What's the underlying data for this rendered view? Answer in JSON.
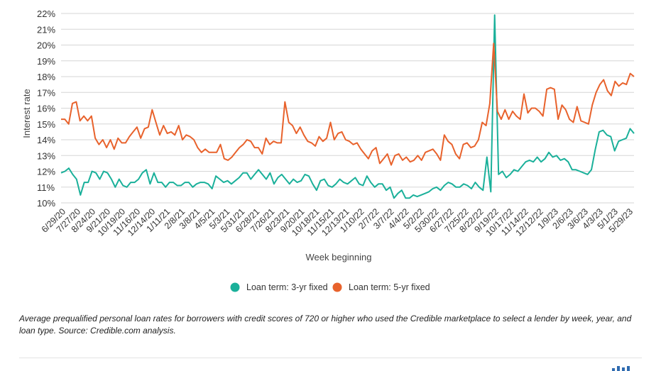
{
  "chart_data": {
    "type": "line",
    "title": "",
    "xlabel": "Week beginning",
    "ylabel": "Interest rate",
    "ylim": [
      10,
      22
    ],
    "y_ticks": [
      "22%",
      "21%",
      "20%",
      "19%",
      "18%",
      "17%",
      "16%",
      "15%",
      "14%",
      "13%",
      "12%",
      "11%",
      "10%"
    ],
    "x_tick_labels": [
      "6/29/20",
      "7/27/20",
      "8/24/20",
      "9/21/20",
      "10/19/20",
      "11/16/20",
      "12/14/20",
      "1/11/21",
      "2/8/21",
      "3/8/21",
      "4/5/21",
      "5/3/21",
      "5/31/21",
      "6/28/21",
      "7/26/21",
      "8/23/21",
      "9/20/21",
      "10/18/21",
      "11/15/21",
      "12/13/21",
      "1/10/22",
      "2/7/22",
      "3/7/22",
      "4/4/22",
      "5/2/22",
      "5/30/22",
      "6/27/22",
      "7/25/22",
      "8/22/22",
      "9/19/22",
      "10/17/22",
      "11/14/22",
      "12/12/22",
      "1/9/23",
      "2/6/23",
      "3/6/23",
      "4/3/23",
      "5/1/23",
      "5/29/23"
    ],
    "grid": "horizontal",
    "legend_position": "bottom",
    "colors": {
      "three_year": "#1ab09a",
      "five_year": "#e8622c"
    },
    "series": [
      {
        "name": "Loan term: 3-yr fixed",
        "values": [
          11.9,
          12.0,
          12.2,
          11.8,
          11.5,
          10.5,
          11.3,
          11.3,
          12.0,
          11.9,
          11.5,
          12.0,
          11.9,
          11.5,
          11.0,
          11.5,
          11.1,
          11.0,
          11.3,
          11.3,
          11.5,
          11.9,
          12.1,
          11.2,
          11.9,
          11.3,
          11.3,
          11.0,
          11.3,
          11.3,
          11.1,
          11.1,
          11.3,
          11.3,
          11.0,
          11.2,
          11.3,
          11.3,
          11.2,
          10.9,
          11.7,
          11.5,
          11.3,
          11.4,
          11.2,
          11.4,
          11.6,
          11.9,
          11.9,
          11.5,
          11.8,
          12.1,
          11.8,
          11.5,
          11.9,
          11.2,
          11.6,
          11.8,
          11.5,
          11.2,
          11.5,
          11.3,
          11.4,
          11.8,
          11.7,
          11.2,
          10.8,
          11.4,
          11.5,
          11.1,
          11.0,
          11.2,
          11.5,
          11.3,
          11.2,
          11.4,
          11.6,
          11.2,
          11.1,
          11.7,
          11.3,
          11.0,
          11.2,
          11.2,
          10.8,
          11.0,
          10.3,
          10.6,
          10.8,
          10.3,
          10.3,
          10.5,
          10.4,
          10.5,
          10.6,
          10.7,
          10.9,
          11.0,
          10.8,
          11.1,
          11.3,
          11.2,
          11.0,
          11.0,
          11.2,
          11.1,
          10.9,
          11.3,
          11.0,
          10.8,
          12.9,
          10.7,
          21.9,
          11.8,
          12.0,
          11.6,
          11.8,
          12.1,
          12.0,
          12.3,
          12.6,
          12.7,
          12.6,
          12.9,
          12.6,
          12.8,
          13.2,
          12.9,
          13.0,
          12.7,
          12.8,
          12.6,
          12.1,
          12.1,
          12.0,
          11.9,
          11.8,
          12.1,
          13.4,
          14.5,
          14.6,
          14.3,
          14.2,
          13.3,
          13.9,
          14.0,
          14.1,
          14.7,
          14.4
        ]
      },
      {
        "name": "Loan term: 5-yr fixed",
        "values": [
          15.3,
          15.3,
          15.0,
          16.3,
          16.4,
          15.2,
          15.5,
          15.2,
          15.5,
          14.1,
          13.7,
          14.0,
          13.5,
          14.0,
          13.4,
          14.1,
          13.8,
          13.8,
          14.2,
          14.5,
          14.8,
          14.1,
          14.7,
          14.8,
          15.9,
          15.1,
          14.3,
          14.9,
          14.4,
          14.5,
          14.3,
          14.9,
          14.0,
          14.3,
          14.2,
          14.0,
          13.5,
          13.2,
          13.4,
          13.2,
          13.2,
          13.2,
          13.7,
          12.8,
          12.7,
          12.9,
          13.2,
          13.5,
          13.7,
          14.0,
          13.9,
          13.5,
          13.5,
          13.1,
          14.1,
          13.7,
          13.9,
          13.8,
          13.8,
          16.4,
          15.1,
          14.9,
          14.4,
          14.8,
          14.3,
          13.9,
          13.8,
          13.6,
          14.2,
          13.9,
          14.1,
          15.1,
          14.0,
          14.4,
          14.5,
          14.0,
          13.9,
          13.7,
          13.8,
          13.4,
          13.1,
          12.8,
          13.3,
          13.5,
          12.5,
          12.8,
          13.1,
          12.4,
          13.0,
          13.1,
          12.7,
          12.9,
          12.6,
          12.7,
          13.0,
          12.7,
          13.2,
          13.3,
          13.4,
          13.1,
          12.7,
          14.3,
          13.9,
          13.7,
          13.1,
          12.8,
          13.7,
          13.8,
          13.5,
          13.6,
          14.0,
          15.1,
          14.9,
          16.3,
          20.1,
          15.8,
          15.3,
          15.9,
          15.3,
          15.8,
          15.5,
          15.3,
          16.9,
          15.7,
          16.0,
          16.0,
          15.8,
          15.5,
          17.2,
          17.3,
          17.2,
          15.3,
          16.2,
          15.9,
          15.3,
          15.1,
          16.1,
          15.2,
          15.1,
          15.0,
          16.2,
          17.0,
          17.5,
          17.8,
          17.1,
          16.8,
          17.7,
          17.4,
          17.6,
          17.5,
          18.2,
          18.0
        ]
      }
    ]
  },
  "caption": "Average prequalified personal loan rates for borrowers with credit scores of 720 or higher who used the Credible marketplace to select a lender by week, year, and loan type. Source: Credible.com analysis."
}
